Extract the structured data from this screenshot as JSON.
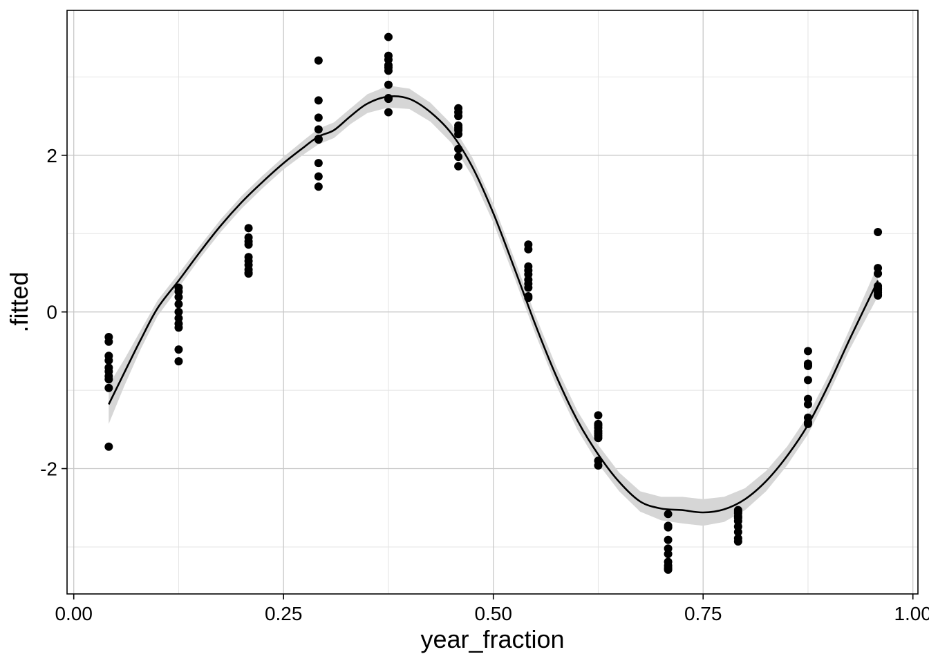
{
  "chart_data": {
    "type": "scatter",
    "xlabel": "year_fraction",
    "ylabel": ".fitted",
    "xlim": [
      -0.008,
      1.006
    ],
    "ylim": [
      -3.6,
      3.85
    ],
    "x_ticks": [
      0.0,
      0.25,
      0.5,
      0.75,
      1.0
    ],
    "x_tick_labels": [
      "0.00",
      "0.25",
      "0.50",
      "0.75",
      "1.00"
    ],
    "x_minor_ticks": [
      0.125,
      0.375,
      0.625,
      0.875
    ],
    "y_ticks": [
      -2,
      0,
      2
    ],
    "y_tick_labels": [
      "-2",
      "0",
      "2"
    ],
    "y_minor_ticks": [
      -3,
      -1,
      1,
      3
    ],
    "grid": true,
    "legend": "none",
    "colors": {
      "points": "#000000",
      "line": "#000000",
      "band": "#d6d6d6",
      "grid": "#c8c8c8"
    },
    "series": [
      {
        "kind": "points",
        "x": [
          0.0417,
          0.0417,
          0.0417,
          0.0417,
          0.0417,
          0.0417,
          0.0417,
          0.0417,
          0.0417,
          0.0417,
          0.125,
          0.125,
          0.125,
          0.125,
          0.125,
          0.125,
          0.125,
          0.125,
          0.125,
          0.125,
          0.2083,
          0.2083,
          0.2083,
          0.2083,
          0.2083,
          0.2083,
          0.2083,
          0.2083,
          0.2083,
          0.2083,
          0.2917,
          0.2917,
          0.2917,
          0.2917,
          0.2917,
          0.2917,
          0.2917,
          0.2917,
          0.2917,
          0.375,
          0.375,
          0.375,
          0.375,
          0.375,
          0.375,
          0.375,
          0.375,
          0.375,
          0.375,
          0.4583,
          0.4583,
          0.4583,
          0.4583,
          0.4583,
          0.4583,
          0.4583,
          0.4583,
          0.4583,
          0.4583,
          0.5417,
          0.5417,
          0.5417,
          0.5417,
          0.5417,
          0.5417,
          0.5417,
          0.5417,
          0.5417,
          0.5417,
          0.625,
          0.625,
          0.625,
          0.625,
          0.625,
          0.625,
          0.625,
          0.625,
          0.625,
          0.625,
          0.7083,
          0.7083,
          0.7083,
          0.7083,
          0.7083,
          0.7083,
          0.7083,
          0.7083,
          0.7083,
          0.7083,
          0.7917,
          0.7917,
          0.7917,
          0.7917,
          0.7917,
          0.7917,
          0.7917,
          0.7917,
          0.7917,
          0.7917,
          0.875,
          0.875,
          0.875,
          0.875,
          0.875,
          0.875,
          0.875,
          0.875,
          0.875,
          0.875,
          0.9583,
          0.9583,
          0.9583,
          0.9583,
          0.9583,
          0.9583,
          0.9583,
          0.9583,
          0.9583
        ],
        "y": [
          -0.32,
          -0.38,
          -0.56,
          -0.62,
          -0.71,
          -0.76,
          -0.82,
          -0.86,
          -0.97,
          -1.72,
          0.31,
          0.26,
          0.19,
          0.1,
          0.0,
          -0.08,
          -0.15,
          -0.2,
          -0.48,
          -0.63,
          1.07,
          0.95,
          0.9,
          0.86,
          0.7,
          0.65,
          0.6,
          0.54,
          0.5,
          0.49,
          3.21,
          2.7,
          2.48,
          2.33,
          2.21,
          1.9,
          1.73,
          1.6,
          2.2,
          3.51,
          3.27,
          3.22,
          3.15,
          3.08,
          2.9,
          2.73,
          2.72,
          2.55,
          3.12,
          2.6,
          2.55,
          2.5,
          2.38,
          2.32,
          2.27,
          2.08,
          1.98,
          1.86,
          2.35,
          0.86,
          0.8,
          0.58,
          0.53,
          0.48,
          0.41,
          0.36,
          0.31,
          0.2,
          0.18,
          -1.32,
          -1.43,
          -1.48,
          -1.52,
          -1.55,
          -1.58,
          -1.61,
          -1.9,
          -1.96,
          -1.45,
          -2.58,
          -2.73,
          -2.75,
          -2.91,
          -3.02,
          -3.09,
          -3.19,
          -3.24,
          -3.29,
          -3.27,
          -2.53,
          -2.57,
          -2.61,
          -2.67,
          -2.74,
          -2.81,
          -2.89,
          -2.93,
          -2.55,
          -2.63,
          -0.5,
          -0.66,
          -0.69,
          -0.87,
          -1.11,
          -1.18,
          -1.35,
          -1.41,
          -1.43,
          -0.68,
          1.02,
          0.56,
          0.49,
          0.33,
          0.28,
          0.25,
          0.22,
          0.21,
          0.3
        ]
      },
      {
        "kind": "smooth",
        "x": [
          0.0417,
          0.06,
          0.08,
          0.1,
          0.125,
          0.15,
          0.175,
          0.2,
          0.225,
          0.25,
          0.275,
          0.2917,
          0.31,
          0.33,
          0.35,
          0.375,
          0.4,
          0.425,
          0.45,
          0.475,
          0.5,
          0.525,
          0.55,
          0.575,
          0.6,
          0.625,
          0.65,
          0.675,
          0.7,
          0.725,
          0.75,
          0.775,
          0.8,
          0.825,
          0.85,
          0.875,
          0.9,
          0.925,
          0.9583
        ],
        "y": [
          -1.18,
          -0.78,
          -0.35,
          0.05,
          0.4,
          0.76,
          1.1,
          1.4,
          1.66,
          1.9,
          2.11,
          2.24,
          2.32,
          2.5,
          2.66,
          2.75,
          2.72,
          2.55,
          2.28,
          1.85,
          1.26,
          0.56,
          -0.16,
          -0.82,
          -1.38,
          -1.82,
          -2.17,
          -2.42,
          -2.51,
          -2.53,
          -2.56,
          -2.52,
          -2.39,
          -2.16,
          -1.84,
          -1.44,
          -0.92,
          -0.34,
          0.4
        ],
        "band_halfwidth": [
          0.25,
          0.17,
          0.12,
          0.1,
          0.09,
          0.08,
          0.08,
          0.08,
          0.08,
          0.08,
          0.09,
          0.1,
          0.1,
          0.1,
          0.12,
          0.14,
          0.13,
          0.12,
          0.12,
          0.12,
          0.12,
          0.12,
          0.12,
          0.12,
          0.12,
          0.12,
          0.12,
          0.13,
          0.15,
          0.17,
          0.17,
          0.16,
          0.14,
          0.13,
          0.12,
          0.12,
          0.12,
          0.13,
          0.2
        ]
      }
    ]
  }
}
